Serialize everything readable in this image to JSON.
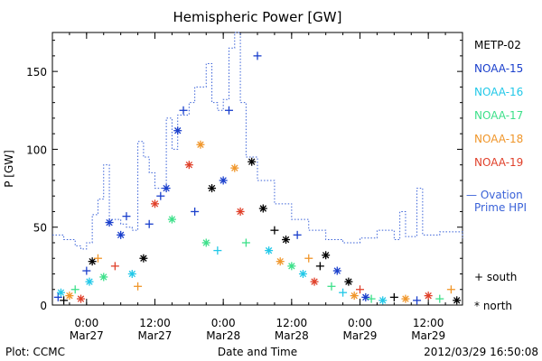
{
  "chart_data": {
    "type": "scatter",
    "title": "Hemispheric Power [GW]",
    "ylabel": "P [GW]",
    "xlabel": "Date and Time",
    "ylim": [
      0,
      175
    ],
    "xlim": [
      "2012-03-26 18:00",
      "2012-03-29 18:00"
    ],
    "yticks": [
      0,
      50,
      100,
      150
    ],
    "xticks": [
      {
        "t": "2012-03-27 00:00",
        "time": "0:00",
        "day": "Mar27"
      },
      {
        "t": "2012-03-27 12:00",
        "time": "12:00",
        "day": "Mar27"
      },
      {
        "t": "2012-03-28 00:00",
        "time": "0:00",
        "day": "Mar28"
      },
      {
        "t": "2012-03-28 12:00",
        "time": "12:00",
        "day": "Mar28"
      },
      {
        "t": "2012-03-29 00:00",
        "time": "0:00",
        "day": "Mar29"
      },
      {
        "t": "2012-03-29 12:00",
        "time": "12:00",
        "day": "Mar29"
      }
    ],
    "grid": false,
    "legend_position": "right",
    "series": [
      {
        "name": "METP-02",
        "color": "#000000",
        "markers": [
          "plus",
          "asterisk"
        ]
      },
      {
        "name": "NOAA-15",
        "color": "#1a3fcc",
        "markers": [
          "plus",
          "asterisk"
        ]
      },
      {
        "name": "NOAA-16",
        "color": "#22c8e8",
        "markers": [
          "plus",
          "asterisk"
        ]
      },
      {
        "name": "NOAA-17",
        "color": "#3de08a",
        "markers": [
          "plus",
          "asterisk"
        ]
      },
      {
        "name": "NOAA-18",
        "color": "#f0962a",
        "markers": [
          "plus",
          "asterisk"
        ]
      },
      {
        "name": "NOAA-19",
        "color": "#e0402a",
        "markers": [
          "plus",
          "asterisk"
        ]
      },
      {
        "name": "Ovation Prime HPI",
        "color": "#3a62d8",
        "style": "dotted-line",
        "points": [
          [
            "2012-03-26 18:00",
            45
          ],
          [
            "2012-03-26 20:00",
            42
          ],
          [
            "2012-03-26 22:00",
            38
          ],
          [
            "2012-03-26 23:00",
            36
          ],
          [
            "2012-03-27 00:00",
            40
          ],
          [
            "2012-03-27 01:00",
            58
          ],
          [
            "2012-03-27 02:00",
            68
          ],
          [
            "2012-03-27 03:00",
            90
          ],
          [
            "2012-03-27 04:00",
            55
          ],
          [
            "2012-03-27 06:00",
            52
          ],
          [
            "2012-03-27 07:00",
            50
          ],
          [
            "2012-03-27 08:00",
            48
          ],
          [
            "2012-03-27 09:00",
            105
          ],
          [
            "2012-03-27 10:00",
            95
          ],
          [
            "2012-03-27 11:00",
            85
          ],
          [
            "2012-03-27 12:00",
            75
          ],
          [
            "2012-03-27 14:00",
            120
          ],
          [
            "2012-03-27 15:00",
            100
          ],
          [
            "2012-03-27 16:00",
            122
          ],
          [
            "2012-03-27 18:00",
            130
          ],
          [
            "2012-03-27 19:00",
            140
          ],
          [
            "2012-03-27 21:00",
            155
          ],
          [
            "2012-03-27 22:00",
            130
          ],
          [
            "2012-03-27 23:00",
            125
          ],
          [
            "2012-03-28 00:00",
            132
          ],
          [
            "2012-03-28 01:00",
            165
          ],
          [
            "2012-03-28 02:00",
            175
          ],
          [
            "2012-03-28 03:00",
            130
          ],
          [
            "2012-03-28 04:00",
            95
          ],
          [
            "2012-03-28 06:00",
            80
          ],
          [
            "2012-03-28 09:00",
            65
          ],
          [
            "2012-03-28 12:00",
            55
          ],
          [
            "2012-03-28 15:00",
            48
          ],
          [
            "2012-03-28 18:00",
            42
          ],
          [
            "2012-03-28 21:00",
            40
          ],
          [
            "2012-03-29 00:00",
            43
          ],
          [
            "2012-03-29 03:00",
            48
          ],
          [
            "2012-03-29 06:00",
            42
          ],
          [
            "2012-03-29 07:00",
            60
          ],
          [
            "2012-03-29 08:00",
            44
          ],
          [
            "2012-03-29 10:00",
            75
          ],
          [
            "2012-03-29 11:00",
            45
          ],
          [
            "2012-03-29 14:00",
            47
          ],
          [
            "2012-03-29 18:00",
            43
          ]
        ]
      }
    ],
    "scatter_points": [
      [
        "2012-03-26 19:00",
        5,
        "NOAA-15",
        "plus"
      ],
      [
        "2012-03-26 19:30",
        8,
        "NOAA-16",
        "asterisk"
      ],
      [
        "2012-03-26 20:00",
        3,
        "METP-02",
        "plus"
      ],
      [
        "2012-03-26 21:00",
        6,
        "NOAA-18",
        "asterisk"
      ],
      [
        "2012-03-26 22:00",
        10,
        "NOAA-17",
        "plus"
      ],
      [
        "2012-03-26 23:00",
        4,
        "NOAA-19",
        "asterisk"
      ],
      [
        "2012-03-27 00:00",
        22,
        "NOAA-15",
        "plus"
      ],
      [
        "2012-03-27 00:30",
        15,
        "NOAA-16",
        "asterisk"
      ],
      [
        "2012-03-27 01:00",
        28,
        "METP-02",
        "asterisk"
      ],
      [
        "2012-03-27 02:00",
        30,
        "NOAA-18",
        "plus"
      ],
      [
        "2012-03-27 03:00",
        18,
        "NOAA-17",
        "asterisk"
      ],
      [
        "2012-03-27 04:00",
        53,
        "NOAA-15",
        "asterisk"
      ],
      [
        "2012-03-27 05:00",
        25,
        "NOAA-19",
        "plus"
      ],
      [
        "2012-03-27 06:00",
        45,
        "NOAA-15",
        "asterisk"
      ],
      [
        "2012-03-27 07:00",
        57,
        "NOAA-15",
        "plus"
      ],
      [
        "2012-03-27 08:00",
        20,
        "NOAA-16",
        "asterisk"
      ],
      [
        "2012-03-27 09:00",
        12,
        "NOAA-18",
        "plus"
      ],
      [
        "2012-03-27 10:00",
        30,
        "METP-02",
        "asterisk"
      ],
      [
        "2012-03-27 11:00",
        52,
        "NOAA-15",
        "plus"
      ],
      [
        "2012-03-27 12:00",
        65,
        "NOAA-19",
        "asterisk"
      ],
      [
        "2012-03-27 13:00",
        70,
        "NOAA-15",
        "plus"
      ],
      [
        "2012-03-27 14:00",
        75,
        "NOAA-15",
        "asterisk"
      ],
      [
        "2012-03-27 15:00",
        55,
        "NOAA-17",
        "asterisk"
      ],
      [
        "2012-03-27 16:00",
        112,
        "NOAA-15",
        "asterisk"
      ],
      [
        "2012-03-27 17:00",
        125,
        "NOAA-15",
        "plus"
      ],
      [
        "2012-03-27 18:00",
        90,
        "NOAA-19",
        "asterisk"
      ],
      [
        "2012-03-27 19:00",
        60,
        "NOAA-15",
        "plus"
      ],
      [
        "2012-03-27 20:00",
        103,
        "NOAA-18",
        "asterisk"
      ],
      [
        "2012-03-27 21:00",
        40,
        "NOAA-17",
        "asterisk"
      ],
      [
        "2012-03-27 22:00",
        75,
        "METP-02",
        "asterisk"
      ],
      [
        "2012-03-27 23:00",
        35,
        "NOAA-16",
        "plus"
      ],
      [
        "2012-03-28 00:00",
        80,
        "NOAA-15",
        "asterisk"
      ],
      [
        "2012-03-28 01:00",
        125,
        "NOAA-15",
        "plus"
      ],
      [
        "2012-03-28 02:00",
        88,
        "NOAA-18",
        "asterisk"
      ],
      [
        "2012-03-28 03:00",
        60,
        "NOAA-19",
        "asterisk"
      ],
      [
        "2012-03-28 04:00",
        40,
        "NOAA-17",
        "plus"
      ],
      [
        "2012-03-28 05:00",
        92,
        "METP-02",
        "asterisk"
      ],
      [
        "2012-03-28 06:00",
        160,
        "NOAA-15",
        "plus"
      ],
      [
        "2012-03-28 07:00",
        62,
        "METP-02",
        "asterisk"
      ],
      [
        "2012-03-28 08:00",
        35,
        "NOAA-16",
        "asterisk"
      ],
      [
        "2012-03-28 09:00",
        48,
        "METP-02",
        "plus"
      ],
      [
        "2012-03-28 10:00",
        28,
        "NOAA-18",
        "asterisk"
      ],
      [
        "2012-03-28 11:00",
        42,
        "METP-02",
        "asterisk"
      ],
      [
        "2012-03-28 12:00",
        25,
        "NOAA-17",
        "asterisk"
      ],
      [
        "2012-03-28 13:00",
        45,
        "NOAA-15",
        "plus"
      ],
      [
        "2012-03-28 14:00",
        20,
        "NOAA-16",
        "asterisk"
      ],
      [
        "2012-03-28 15:00",
        30,
        "NOAA-18",
        "plus"
      ],
      [
        "2012-03-28 16:00",
        15,
        "NOAA-19",
        "asterisk"
      ],
      [
        "2012-03-28 17:00",
        25,
        "METP-02",
        "plus"
      ],
      [
        "2012-03-28 18:00",
        32,
        "METP-02",
        "asterisk"
      ],
      [
        "2012-03-28 19:00",
        12,
        "NOAA-17",
        "plus"
      ],
      [
        "2012-03-28 20:00",
        22,
        "NOAA-15",
        "asterisk"
      ],
      [
        "2012-03-28 21:00",
        8,
        "NOAA-16",
        "plus"
      ],
      [
        "2012-03-28 22:00",
        15,
        "METP-02",
        "asterisk"
      ],
      [
        "2012-03-28 23:00",
        6,
        "NOAA-18",
        "asterisk"
      ],
      [
        "2012-03-29 00:00",
        10,
        "NOAA-19",
        "plus"
      ],
      [
        "2012-03-29 01:00",
        5,
        "NOAA-15",
        "asterisk"
      ],
      [
        "2012-03-29 02:00",
        4,
        "NOAA-17",
        "plus"
      ],
      [
        "2012-03-29 04:00",
        3,
        "NOAA-16",
        "asterisk"
      ],
      [
        "2012-03-29 06:00",
        5,
        "METP-02",
        "plus"
      ],
      [
        "2012-03-29 08:00",
        4,
        "NOAA-18",
        "asterisk"
      ],
      [
        "2012-03-29 10:00",
        3,
        "NOAA-15",
        "plus"
      ],
      [
        "2012-03-29 12:00",
        6,
        "NOAA-19",
        "asterisk"
      ],
      [
        "2012-03-29 14:00",
        4,
        "NOAA-17",
        "plus"
      ],
      [
        "2012-03-29 16:00",
        10,
        "NOAA-18",
        "plus"
      ],
      [
        "2012-03-29 17:00",
        3,
        "METP-02",
        "asterisk"
      ]
    ]
  },
  "legend": {
    "items": [
      "METP-02",
      "NOAA-15",
      "NOAA-16",
      "NOAA-17",
      "NOAA-18",
      "NOAA-19"
    ],
    "colors": [
      "#000000",
      "#1a3fcc",
      "#22c8e8",
      "#3de08a",
      "#f0962a",
      "#e0402a"
    ],
    "ovation_line1": "— Ovation",
    "ovation_line2": "Prime HPI",
    "ovation_color": "#3a62d8",
    "south_label": "+ south",
    "north_label": "* north"
  },
  "footer": {
    "left": "Plot: CCMC",
    "center": "Date and Time",
    "right": "2012/03/29 16:50:08"
  }
}
